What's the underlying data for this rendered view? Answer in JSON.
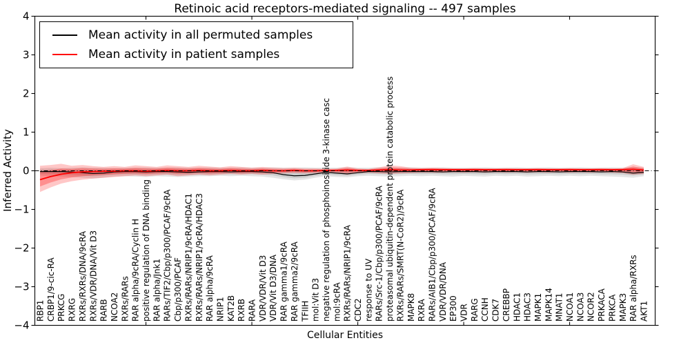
{
  "title": "Retinoic acid receptors-mediated signaling -- 497 samples",
  "axes": {
    "ylabel": "Inferred Activity",
    "xlabel": "Cellular Entities"
  },
  "legend": {
    "items": [
      {
        "label": "Mean activity in all permuted samples",
        "color": "#000000"
      },
      {
        "label": "Mean activity in patient samples",
        "color": "#ff0000"
      }
    ]
  },
  "chart_data": {
    "type": "line",
    "title": "Retinoic acid receptors-mediated signaling -- 497 samples",
    "xlabel": "Cellular Entities",
    "ylabel": "Inferred Activity",
    "ylim": [
      -4,
      4
    ],
    "yticks": [
      4,
      3,
      2,
      1,
      0,
      -1,
      -2,
      -3,
      -4
    ],
    "grid": false,
    "legend_position": "upper left",
    "zero_line": 0,
    "x_major_tick_step": 10,
    "categories": [
      "RBP1",
      "CRBP1/9-cic-RA",
      "PRKCG",
      "RXRG",
      "RXRs/RXRs/DNA/9cRA",
      "RXRs/VDR/DNA/Vit D3",
      "RARB",
      "NCOA2",
      "RXRs/RARs",
      "RAR alpha/9cRA/Cyclin H",
      "positive regulation of DNA binding",
      "RAR alpha/Jnk1",
      "RARs/TIF2/Cbp/p300/PCAF/9cRA",
      "Cbp/p300/PCAF",
      "RXRs/RARs/NRIP1/9cRA/HDAC1",
      "RXRs/RARs/NRIP1/9cRA/HDAC3",
      "RAR alpha/9cRA",
      "NRIP1",
      "KAT2B",
      "RXRB",
      "RARA",
      "VDR/VDR/Vit D3",
      "VDR/Vit D3/DNA",
      "RAR gamma1/9cRA",
      "RAR gamma2/9cRA",
      "TFIIH",
      "mol:Vit D3",
      "negative regulation of phosphoinositide 3-kinase casc",
      "mol:9cRA",
      "RXRs/RARs/NRIP1/9cRA",
      "CDC2",
      "response to UV",
      "RARs/Src-1/Cbp/p300/PCAF/9cRA",
      "proteasomal ubiquitin-dependent protein catabolic process",
      "RXRs/RARs/SMRT(N-CoR2)/9cRA",
      "MAPK8",
      "RXRA",
      "RARs/AIB1/Cbp/p300/PCAF/9cRA",
      "VDR/VDR/DNA",
      "EP300",
      "VDR",
      "RARG",
      "CCNH",
      "CDK7",
      "CREBBP",
      "HDAC1",
      "HDAC3",
      "MAPK1",
      "MAPK14",
      "MNAT1",
      "NCOA1",
      "NCOA3",
      "NCOR2",
      "PRKACA",
      "PRKCA",
      "MAPK3",
      "RAR alpha/RXRs",
      "AKT1"
    ],
    "series": [
      {
        "name": "Mean activity in all permuted samples",
        "color": "#000000",
        "linewidth": 1.2,
        "values": [
          -0.02,
          -0.02,
          -0.02,
          -0.03,
          -0.05,
          -0.07,
          -0.06,
          -0.03,
          -0.02,
          -0.02,
          -0.03,
          -0.02,
          -0.02,
          -0.03,
          -0.04,
          -0.03,
          -0.02,
          -0.02,
          -0.03,
          -0.02,
          -0.02,
          -0.03,
          -0.05,
          -0.1,
          -0.13,
          -0.12,
          -0.08,
          -0.04,
          -0.06,
          -0.08,
          -0.05,
          -0.02,
          -0.02,
          -0.03,
          -0.02,
          -0.02,
          -0.02,
          -0.02,
          -0.03,
          -0.02,
          -0.02,
          -0.02,
          -0.03,
          -0.02,
          -0.02,
          -0.02,
          -0.03,
          -0.02,
          -0.02,
          -0.03,
          -0.02,
          -0.02,
          -0.02,
          -0.03,
          -0.02,
          -0.03,
          -0.06,
          -0.04
        ]
      },
      {
        "name": "Mean activity in patient samples",
        "color": "#ff0000",
        "linewidth": 1.8,
        "values": [
          -0.23,
          -0.15,
          -0.09,
          -0.05,
          -0.03,
          -0.02,
          -0.01,
          -0.01,
          0.0,
          0.0,
          -0.01,
          0.0,
          0.01,
          0.0,
          0.0,
          0.01,
          0.0,
          0.0,
          0.01,
          0.0,
          0.0,
          0.01,
          0.0,
          0.0,
          0.01,
          0.0,
          0.0,
          0.01,
          0.01,
          0.02,
          0.01,
          0.01,
          0.02,
          0.03,
          0.02,
          0.02,
          0.03,
          0.03,
          0.03,
          0.03,
          0.03,
          0.03,
          0.03,
          0.03,
          0.03,
          0.03,
          0.03,
          0.03,
          0.03,
          0.03,
          0.03,
          0.03,
          0.03,
          0.03,
          0.03,
          0.03,
          0.04,
          0.02
        ]
      }
    ],
    "bands": [
      {
        "series": "Mean activity in all permuted samples",
        "color": "#000000",
        "outer_alpha": 0.1,
        "inner_alpha": 0.1,
        "inner_scale": 0.55,
        "upper": [
          0.07,
          0.08,
          0.07,
          0.08,
          0.09,
          0.08,
          0.08,
          0.07,
          0.08,
          0.08,
          0.09,
          0.08,
          0.08,
          0.09,
          0.08,
          0.08,
          0.09,
          0.08,
          0.08,
          0.09,
          0.08,
          0.08,
          0.09,
          0.08,
          0.08,
          0.09,
          0.08,
          0.08,
          0.08,
          0.09,
          0.08,
          0.08,
          0.09,
          0.08,
          0.08,
          0.09,
          0.08,
          0.08,
          0.09,
          0.08,
          0.08,
          0.08,
          0.09,
          0.08,
          0.08,
          0.09,
          0.08,
          0.08,
          0.09,
          0.08,
          0.08,
          0.09,
          0.08,
          0.08,
          0.09,
          0.08,
          0.09,
          0.08
        ],
        "lower": [
          -0.12,
          -0.14,
          -0.15,
          -0.16,
          -0.18,
          -0.2,
          -0.18,
          -0.15,
          -0.14,
          -0.15,
          -0.16,
          -0.14,
          -0.15,
          -0.16,
          -0.15,
          -0.14,
          -0.14,
          -0.13,
          -0.14,
          -0.13,
          -0.14,
          -0.15,
          -0.18,
          -0.22,
          -0.25,
          -0.23,
          -0.18,
          -0.14,
          -0.16,
          -0.17,
          -0.14,
          -0.13,
          -0.14,
          -0.15,
          -0.14,
          -0.13,
          -0.14,
          -0.13,
          -0.14,
          -0.15,
          -0.13,
          -0.14,
          -0.15,
          -0.13,
          -0.14,
          -0.13,
          -0.15,
          -0.14,
          -0.13,
          -0.14,
          -0.13,
          -0.14,
          -0.13,
          -0.14,
          -0.15,
          -0.16,
          -0.18,
          -0.14
        ]
      },
      {
        "series": "Mean activity in patient samples",
        "color": "#ff0000",
        "outer_alpha": 0.22,
        "inner_alpha": 0.28,
        "inner_scale": 0.55,
        "upper": [
          0.13,
          0.15,
          0.18,
          0.13,
          0.15,
          0.12,
          0.1,
          0.12,
          0.1,
          0.14,
          0.12,
          0.1,
          0.14,
          0.12,
          0.1,
          0.13,
          0.11,
          0.09,
          0.12,
          0.1,
          0.08,
          0.1,
          0.08,
          0.07,
          0.08,
          0.06,
          0.06,
          0.05,
          0.06,
          0.11,
          0.06,
          0.05,
          0.09,
          0.14,
          0.12,
          0.08,
          0.07,
          0.08,
          0.07,
          0.06,
          0.06,
          0.07,
          0.06,
          0.06,
          0.07,
          0.06,
          0.06,
          0.07,
          0.06,
          0.06,
          0.07,
          0.06,
          0.06,
          0.07,
          0.06,
          0.07,
          0.17,
          0.1
        ],
        "lower": [
          -0.55,
          -0.43,
          -0.33,
          -0.27,
          -0.23,
          -0.2,
          -0.18,
          -0.16,
          -0.14,
          -0.12,
          -0.14,
          -0.12,
          -0.1,
          -0.14,
          -0.12,
          -0.1,
          -0.12,
          -0.1,
          -0.08,
          -0.1,
          -0.08,
          -0.1,
          -0.08,
          -0.07,
          -0.06,
          -0.07,
          -0.06,
          -0.05,
          -0.06,
          -0.1,
          -0.06,
          -0.05,
          -0.07,
          -0.08,
          -0.07,
          -0.06,
          -0.05,
          -0.05,
          -0.05,
          -0.04,
          -0.05,
          -0.04,
          -0.05,
          -0.04,
          -0.05,
          -0.04,
          -0.05,
          -0.04,
          -0.05,
          -0.04,
          -0.05,
          -0.04,
          -0.05,
          -0.04,
          -0.05,
          -0.06,
          -0.1,
          -0.08
        ]
      }
    ]
  }
}
